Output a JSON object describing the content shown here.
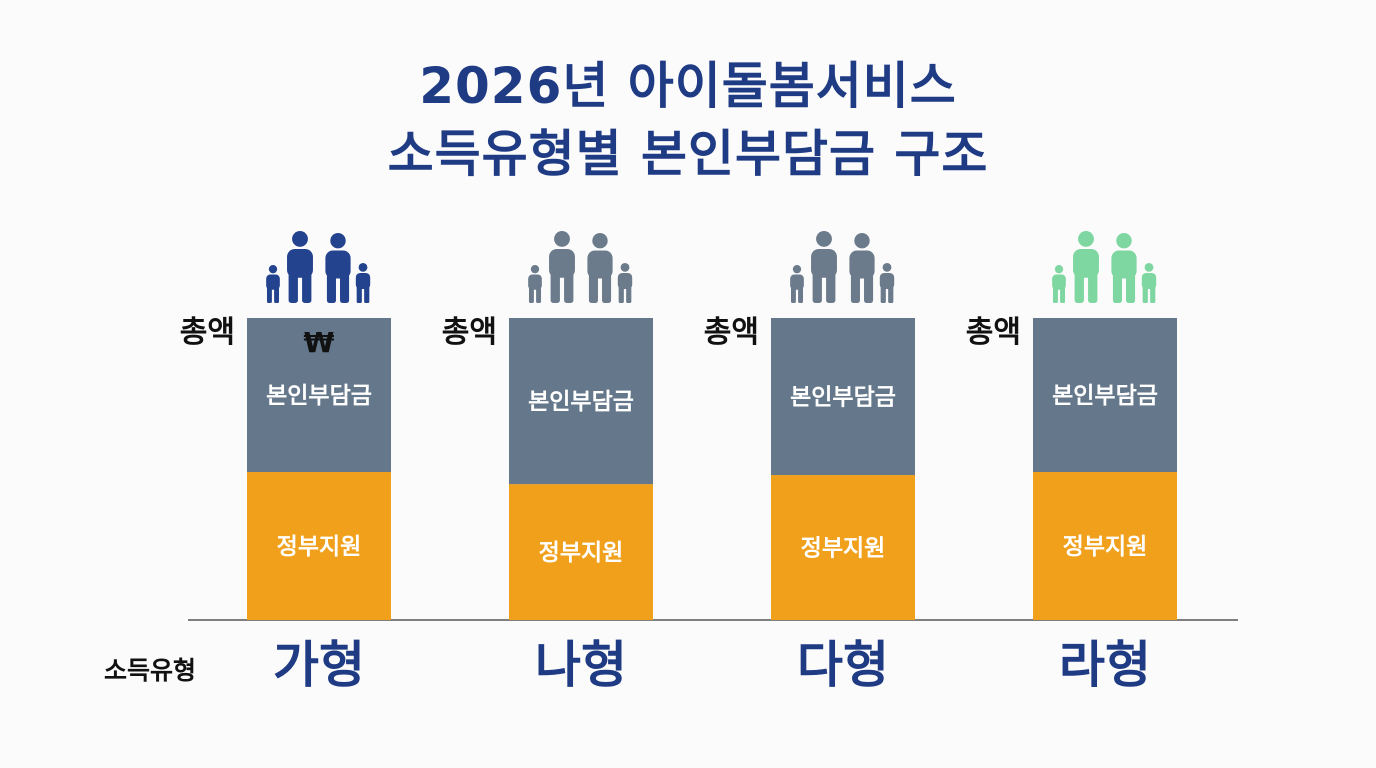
{
  "title": {
    "line1": "2026년 아이돌봄서비스",
    "line2": "소득유형별 본인부담금 구조"
  },
  "chart_data": {
    "type": "bar",
    "stacked": true,
    "categories": [
      "가형",
      "나형",
      "다형",
      "라형"
    ],
    "series": [
      {
        "name": "정부지원",
        "values": [
          0.49,
          0.45,
          0.48,
          0.49
        ]
      },
      {
        "name": "본인부담금",
        "values": [
          0.51,
          0.55,
          0.52,
          0.51
        ]
      }
    ],
    "total_label": "총액",
    "currency_symbol": "₩",
    "xlabel": "소득유형",
    "ylabel": "",
    "ylim": [
      0,
      1
    ],
    "legend": "none",
    "grid": false
  },
  "colors": {
    "self_pay": "#65778a",
    "gov_support": "#f0a01a",
    "title": "#1f3b84",
    "icons": [
      "#24438e",
      "#6c7b8c",
      "#6c7b8c",
      "#7ed6a0"
    ]
  },
  "icons": [
    "family-icon",
    "family-icon",
    "family-icon",
    "family-icon"
  ]
}
